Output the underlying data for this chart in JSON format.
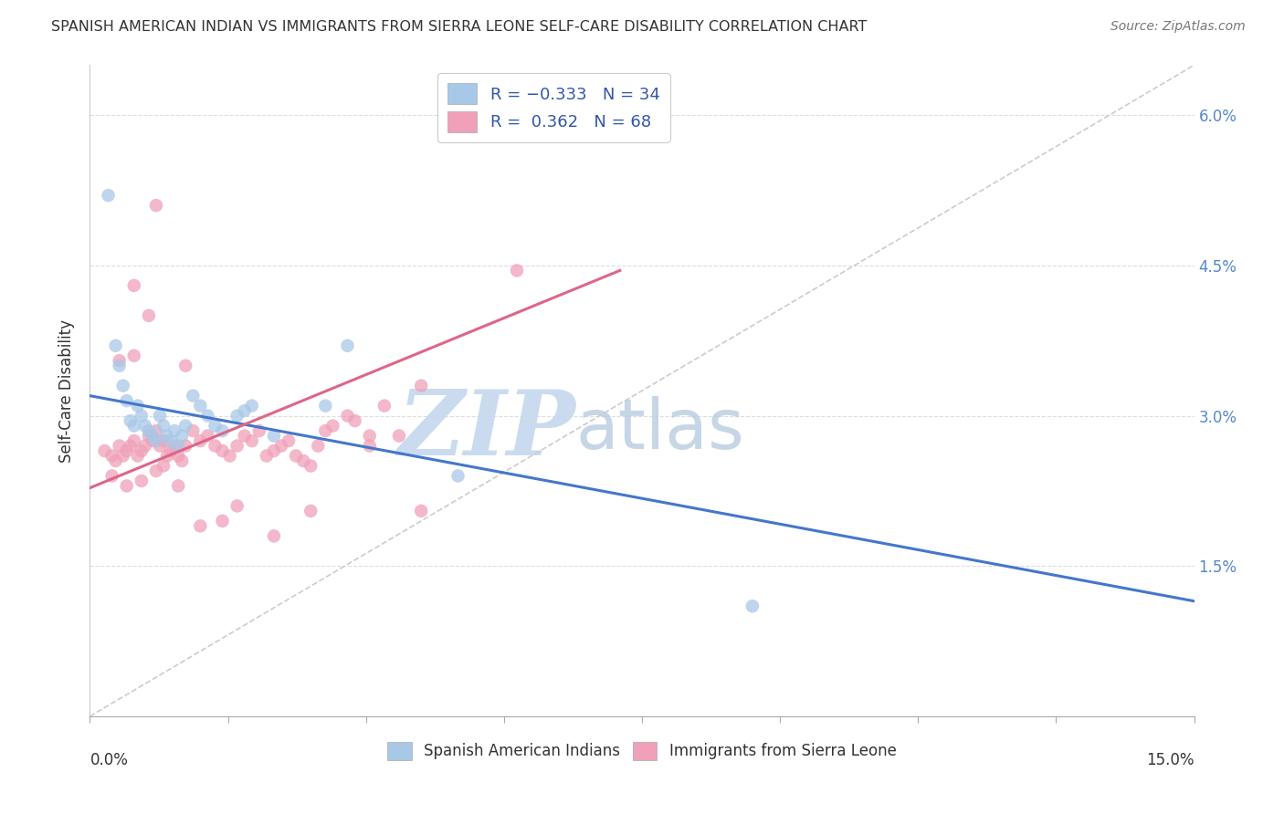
{
  "title": "SPANISH AMERICAN INDIAN VS IMMIGRANTS FROM SIERRA LEONE SELF-CARE DISABILITY CORRELATION CHART",
  "source": "Source: ZipAtlas.com",
  "ylabel_label": "Self-Care Disability",
  "xlim": [
    0.0,
    15.0
  ],
  "ylim": [
    0.0,
    6.5
  ],
  "yticks": [
    1.5,
    3.0,
    4.5,
    6.0
  ],
  "ytick_labels": [
    "1.5%",
    "3.0%",
    "4.5%",
    "6.0%"
  ],
  "xtick_positions": [
    0.0,
    1.875,
    3.75,
    5.625,
    7.5,
    9.375,
    11.25,
    13.125,
    15.0
  ],
  "color_blue": "#a8c8e8",
  "color_pink": "#f0a0b8",
  "line_blue": "#4477cc",
  "line_pink": "#dd6688",
  "line_gray": "#cccccc",
  "blue_line_x": [
    0.0,
    15.0
  ],
  "blue_line_y": [
    3.2,
    1.15
  ],
  "pink_line_x": [
    0.0,
    7.2
  ],
  "pink_line_y": [
    2.28,
    4.45
  ],
  "gray_line_x": [
    0.0,
    15.0
  ],
  "gray_line_y": [
    0.0,
    6.5
  ],
  "blue_scatter_x": [
    0.25,
    0.35,
    0.4,
    0.45,
    0.5,
    0.55,
    0.6,
    0.65,
    0.7,
    0.75,
    0.8,
    0.85,
    0.9,
    0.95,
    1.0,
    1.05,
    1.1,
    1.15,
    1.2,
    1.25,
    1.3,
    1.4,
    1.5,
    1.6,
    1.7,
    1.8,
    2.0,
    2.1,
    2.2,
    2.5,
    3.2,
    3.5,
    5.0,
    9.0
  ],
  "blue_scatter_y": [
    5.2,
    3.7,
    3.5,
    3.3,
    3.15,
    2.95,
    2.9,
    3.1,
    3.0,
    2.9,
    2.85,
    2.8,
    2.75,
    3.0,
    2.9,
    2.8,
    2.75,
    2.85,
    2.7,
    2.8,
    2.9,
    3.2,
    3.1,
    3.0,
    2.9,
    2.85,
    3.0,
    3.05,
    3.1,
    2.8,
    3.1,
    3.7,
    2.4,
    1.1
  ],
  "pink_scatter_x": [
    0.2,
    0.3,
    0.35,
    0.4,
    0.45,
    0.5,
    0.55,
    0.6,
    0.65,
    0.7,
    0.75,
    0.8,
    0.85,
    0.9,
    0.95,
    1.0,
    1.05,
    1.1,
    1.15,
    1.2,
    1.25,
    1.3,
    1.4,
    1.5,
    1.6,
    1.7,
    1.8,
    1.9,
    2.0,
    2.1,
    2.2,
    2.3,
    2.4,
    2.5,
    2.6,
    2.7,
    2.8,
    2.9,
    3.0,
    3.1,
    3.2,
    3.3,
    3.5,
    3.6,
    3.8,
    4.0,
    4.2,
    4.5,
    0.3,
    0.5,
    0.7,
    0.9,
    1.0,
    1.2,
    1.5,
    1.8,
    2.0,
    2.5,
    3.0,
    4.5,
    0.4,
    0.6,
    0.8,
    1.3,
    3.8,
    5.8,
    0.6,
    0.9
  ],
  "pink_scatter_y": [
    2.65,
    2.6,
    2.55,
    2.7,
    2.6,
    2.65,
    2.7,
    2.75,
    2.6,
    2.65,
    2.7,
    2.8,
    2.75,
    2.85,
    2.7,
    2.75,
    2.6,
    2.65,
    2.7,
    2.6,
    2.55,
    2.7,
    2.85,
    2.75,
    2.8,
    2.7,
    2.65,
    2.6,
    2.7,
    2.8,
    2.75,
    2.85,
    2.6,
    2.65,
    2.7,
    2.75,
    2.6,
    2.55,
    2.5,
    2.7,
    2.85,
    2.9,
    3.0,
    2.95,
    2.8,
    3.1,
    2.8,
    3.3,
    2.4,
    2.3,
    2.35,
    2.45,
    2.5,
    2.3,
    1.9,
    1.95,
    2.1,
    1.8,
    2.05,
    2.05,
    3.55,
    3.6,
    4.0,
    3.5,
    2.7,
    4.45,
    4.3,
    5.1
  ]
}
